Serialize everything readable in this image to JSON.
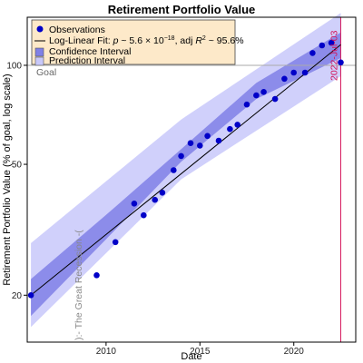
{
  "chart_data": {
    "type": "scatter",
    "title": "Retirement Portfolio Value",
    "xlabel": "Date",
    "ylabel": "Retirement Portfolio Value (% of goal, log scale)",
    "xlim": [
      2005.8,
      2023.3
    ],
    "ylim": [
      14.4,
      140
    ],
    "y_scale": "log",
    "x_ticks": [
      2010,
      2015,
      2020
    ],
    "y_ticks": [
      20,
      50,
      100
    ],
    "legend_position": "top-left",
    "legend": {
      "observations": "Observations",
      "fit_prefix": "Log-Linear Fit: ",
      "fit_p": "p",
      "fit_p_value": " ~ 5.6 × 10",
      "fit_p_exp": "−18",
      "fit_r2_prefix": ", adj ",
      "fit_r2_var": "R",
      "fit_r2_exp": "2",
      "fit_r2_value": " ~ 95.6%",
      "confidence": "Confidence Interval",
      "prediction": "Prediction Interval"
    },
    "annotations": {
      "goal_label": "Goal",
      "goal_value": 100,
      "date_label": "2022-Jul-03",
      "date_value": 2022.5,
      "recession_label": "):- The Great Recession -("
    },
    "series": [
      {
        "name": "Observations",
        "x": [
          2006.0,
          2009.5,
          2010.5,
          2011.5,
          2012.0,
          2012.6,
          2013.0,
          2013.6,
          2014.0,
          2014.5,
          2015.0,
          2015.4,
          2016.0,
          2016.6,
          2017.0,
          2017.5,
          2018.0,
          2018.4,
          2019.0,
          2019.5,
          2020.0,
          2020.6,
          2021.0,
          2021.5,
          2022.0,
          2022.5
        ],
        "y": [
          20,
          23,
          29,
          38,
          35,
          39,
          41,
          48,
          53,
          58,
          57,
          61,
          59,
          64,
          66,
          76,
          81,
          83,
          79,
          91,
          95,
          95,
          109,
          115,
          117,
          102
        ]
      }
    ],
    "fit": {
      "x": [
        2006.0,
        2022.5
      ],
      "y": [
        20.0,
        115.5
      ]
    },
    "confidence_band": {
      "x": [
        2006.0,
        2010.0,
        2014.0,
        2018.0,
        2022.5
      ],
      "lower": [
        17.3,
        29.6,
        50.9,
        79.0,
        105.2
      ],
      "upper": [
        22.4,
        35.1,
        55.6,
        88.4,
        125.9
      ]
    },
    "prediction_band": {
      "x": [
        2006.0,
        2014.0,
        2022.5
      ],
      "lower": [
        16.0,
        45.0,
        92.7
      ],
      "upper": [
        28.8,
        68.4,
        144.2
      ]
    },
    "colors": {
      "points": "#0000c8",
      "fit_line": "#000000",
      "confidence": "#8080e6",
      "prediction": "#c8c8fa",
      "goal_line": "#aaaaaa",
      "date_line": "#d4145a",
      "legend_bg": "#fde9c9"
    }
  }
}
